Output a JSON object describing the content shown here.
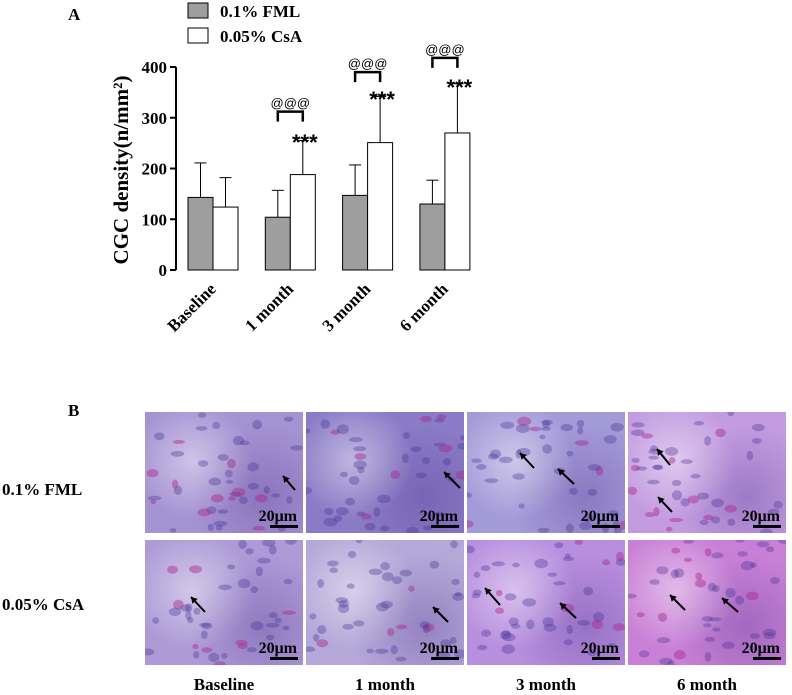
{
  "panel_a_label": "A",
  "panel_b_label": "B",
  "colors": {
    "fml": "#9e9e9e",
    "csa": "#ffffff",
    "stroke": "#000000"
  },
  "chart_data": {
    "type": "bar",
    "ylabel": "CGC density(n/mm²)",
    "ylim": [
      0,
      400
    ],
    "yticks": [
      0,
      100,
      200,
      300,
      400
    ],
    "categories": [
      "Baseline",
      "1 month",
      "3 month",
      "6 month"
    ],
    "series": [
      {
        "name": "0.1% FML",
        "values": [
          143,
          104,
          147,
          130
        ],
        "errors": [
          68,
          53,
          60,
          47
        ]
      },
      {
        "name": "0.05% CsA",
        "values": [
          124,
          188,
          251,
          270
        ],
        "errors": [
          58,
          67,
          91,
          97
        ]
      }
    ],
    "annotations": [
      {
        "category": "1 month",
        "star_label": "***",
        "bracket_label": "@@@",
        "star_y": 260,
        "bracket_y": 312
      },
      {
        "category": "3 month",
        "star_label": "***",
        "bracket_label": "@@@",
        "star_y": 345,
        "bracket_y": 390
      },
      {
        "category": "6 month",
        "star_label": "***",
        "bracket_label": "@@@",
        "star_y": 368,
        "bracket_y": 418
      }
    ],
    "legend_position": "top-left"
  },
  "micrographs": {
    "row_labels": [
      "0.1% FML",
      "0.05% CsA"
    ],
    "col_labels": [
      "Baseline",
      "1 month",
      "3 month",
      "6 month"
    ],
    "scale_label": "20μm",
    "tints": [
      [
        "#a592d2",
        "#8a7bc6",
        "#a39ad8",
        "#c39ce0"
      ],
      [
        "#ad9ad6",
        "#b4a8d8",
        "#b88ede",
        "#c880d6"
      ]
    ]
  }
}
